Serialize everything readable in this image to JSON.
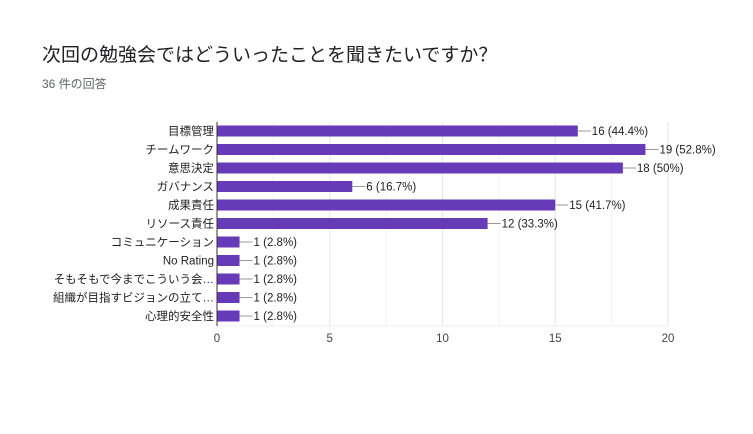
{
  "title": "次回の勉強会ではどういったことを聞きたいですか？",
  "subtitle": "36 件の回答",
  "chart_data": {
    "type": "bar",
    "orientation": "horizontal",
    "categories": [
      "目標管理",
      "チームワーク",
      "意思決定",
      "ガバナンス",
      "成果責任",
      "リソース責任",
      "コミュニケーション",
      "No Rating",
      "そもそもで今までこういう会…",
      "組織が目指すビジョンの立て…",
      "心理的安全性"
    ],
    "values": [
      16,
      19,
      18,
      6,
      15,
      12,
      1,
      1,
      1,
      1,
      1
    ],
    "data_labels": [
      "16 (44.4%)",
      "19 (52.8%)",
      "18 (50%)",
      "6 (16.7%)",
      "15 (41.7%)",
      "12 (33.3%)",
      "1 (2.8%)",
      "1 (2.8%)",
      "1 (2.8%)",
      "1 (2.8%)",
      "1 (2.8%)"
    ],
    "xlim": [
      0,
      20
    ],
    "xticks": [
      "0",
      "5",
      "10",
      "15",
      "20"
    ],
    "grid": true,
    "color": "#673ab7"
  }
}
